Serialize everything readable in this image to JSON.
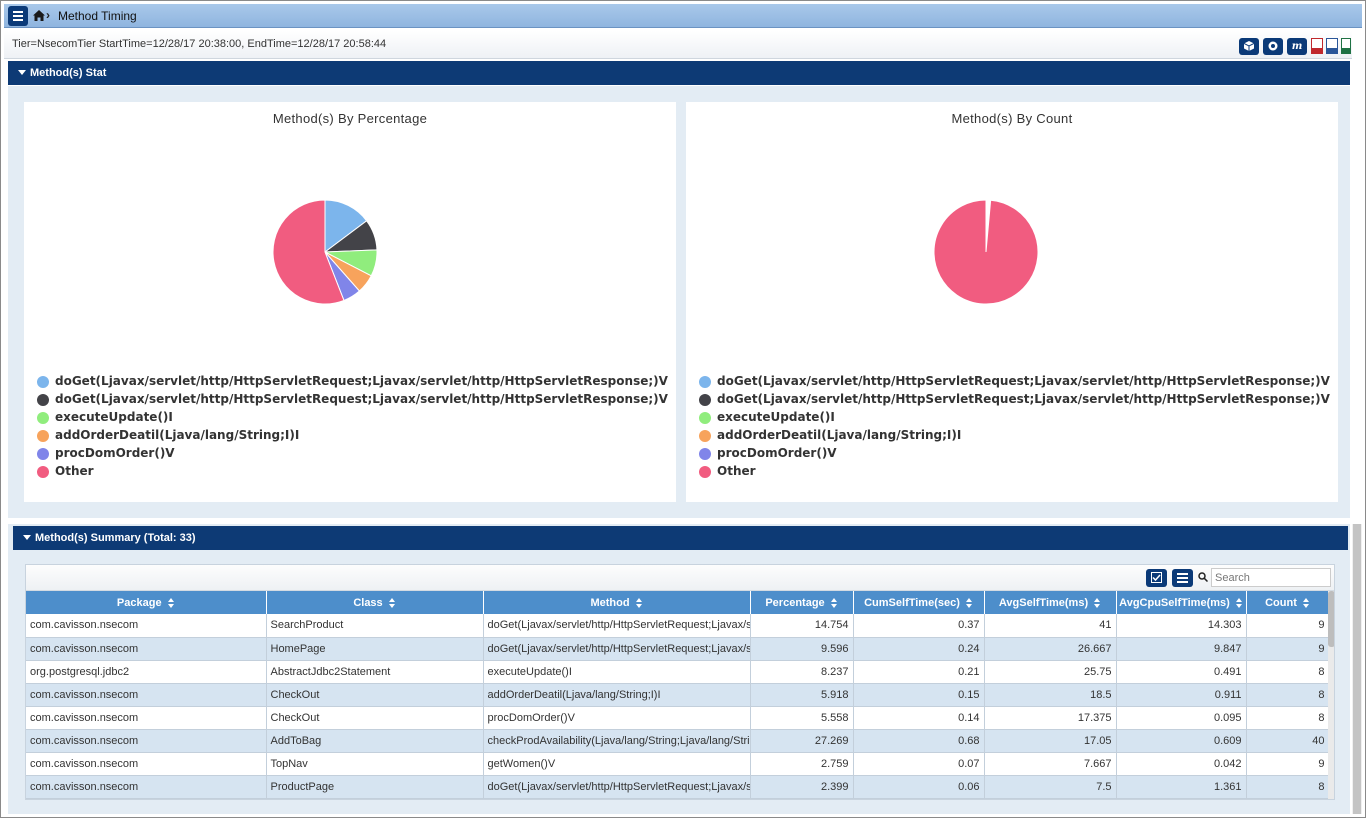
{
  "breadcrumb": {
    "title": "Method Timing"
  },
  "info": {
    "text": "Tier=NsecomTier StartTime=12/28/17 20:38:00, EndTime=12/28/17 20:58:44"
  },
  "toolbar": {
    "icons": [
      "cube-icon",
      "circle-icon",
      "m-icon",
      "pdf-icon",
      "word-icon",
      "excel-icon"
    ],
    "m_label": "m"
  },
  "stat_section": {
    "title": "Method(s) Stat"
  },
  "summary_section": {
    "title": "Method(s) Summary (Total: 33)"
  },
  "legend": [
    {
      "label": "doGet(Ljavax/servlet/http/HttpServletRequest;Ljavax/servlet/http/HttpServletResponse;)V",
      "color": "#7cb5ec"
    },
    {
      "label": "doGet(Ljavax/servlet/http/HttpServletRequest;Ljavax/servlet/http/HttpServletResponse;)V",
      "color": "#434348"
    },
    {
      "label": "executeUpdate()I",
      "color": "#90ed7d"
    },
    {
      "label": "addOrderDeatil(Ljava/lang/String;I)I",
      "color": "#f7a35c"
    },
    {
      "label": "procDomOrder()V",
      "color": "#8085e9"
    },
    {
      "label": "Other",
      "color": "#f15c80"
    }
  ],
  "chart_data": [
    {
      "type": "pie",
      "title": "Method(s) By Percentage",
      "categories": [
        "doGet(Ljavax/servlet/http/HttpServletRequest;Ljavax/servlet/http/HttpServletResponse;)V",
        "doGet(Ljavax/servlet/http/HttpServletRequest;Ljavax/servlet/http/HttpServletResponse;)V",
        "executeUpdate()I",
        "addOrderDeatil(Ljava/lang/String;I)I",
        "procDomOrder()V",
        "Other"
      ],
      "values": [
        14.754,
        9.596,
        8.237,
        5.918,
        5.558,
        55.937
      ],
      "colors": [
        "#7cb5ec",
        "#434348",
        "#90ed7d",
        "#f7a35c",
        "#8085e9",
        "#f15c80"
      ]
    },
    {
      "type": "pie",
      "title": "Method(s) By Count",
      "categories": [
        "doGet(Ljavax/servlet/http/HttpServletRequest;Ljavax/servlet/http/HttpServletResponse;)V",
        "doGet(Ljavax/servlet/http/HttpServletRequest;Ljavax/servlet/http/HttpServletResponse;)V",
        "executeUpdate()I",
        "addOrderDeatil(Ljava/lang/String;I)I",
        "procDomOrder()V",
        "Other"
      ],
      "values": [
        9,
        9,
        8,
        8,
        8,
        2900
      ],
      "colors": [
        "#7cb5ec",
        "#434348",
        "#90ed7d",
        "#f7a35c",
        "#8085e9",
        "#f15c80"
      ]
    }
  ],
  "table": {
    "search_placeholder": "Search",
    "columns": [
      "Package",
      "Class",
      "Method",
      "Percentage",
      "CumSelfTime(sec)",
      "AvgSelfTime(ms)",
      "AvgCpuSelfTime(ms)",
      "Count"
    ],
    "rows": [
      [
        "com.cavisson.nsecom",
        "SearchProduct",
        "doGet(Ljavax/servlet/http/HttpServletRequest;Ljavax/servlet/http/HttpServletResponse;)V",
        "14.754",
        "0.37",
        "41",
        "14.303",
        "9"
      ],
      [
        "com.cavisson.nsecom",
        "HomePage",
        "doGet(Ljavax/servlet/http/HttpServletRequest;Ljavax/servlet/http/HttpServletResponse;)V",
        "9.596",
        "0.24",
        "26.667",
        "9.847",
        "9"
      ],
      [
        "org.postgresql.jdbc2",
        "AbstractJdbc2Statement",
        "executeUpdate()I",
        "8.237",
        "0.21",
        "25.75",
        "0.491",
        "8"
      ],
      [
        "com.cavisson.nsecom",
        "CheckOut",
        "addOrderDeatil(Ljava/lang/String;I)I",
        "5.918",
        "0.15",
        "18.5",
        "0.911",
        "8"
      ],
      [
        "com.cavisson.nsecom",
        "CheckOut",
        "procDomOrder()V",
        "5.558",
        "0.14",
        "17.375",
        "0.095",
        "8"
      ],
      [
        "com.cavisson.nsecom",
        "AddToBag",
        "checkProdAvailability(Ljava/lang/String;Ljava/lang/String;I)I",
        "27.269",
        "0.68",
        "17.05",
        "0.609",
        "40"
      ],
      [
        "com.cavisson.nsecom",
        "TopNav",
        "getWomen()V",
        "2.759",
        "0.07",
        "7.667",
        "0.042",
        "9"
      ],
      [
        "com.cavisson.nsecom",
        "ProductPage",
        "doGet(Ljavax/servlet/http/HttpServletRequest;Ljavax/servlet/http/HttpServletResponse;)V",
        "2.399",
        "0.06",
        "7.5",
        "1.361",
        "8"
      ]
    ]
  }
}
